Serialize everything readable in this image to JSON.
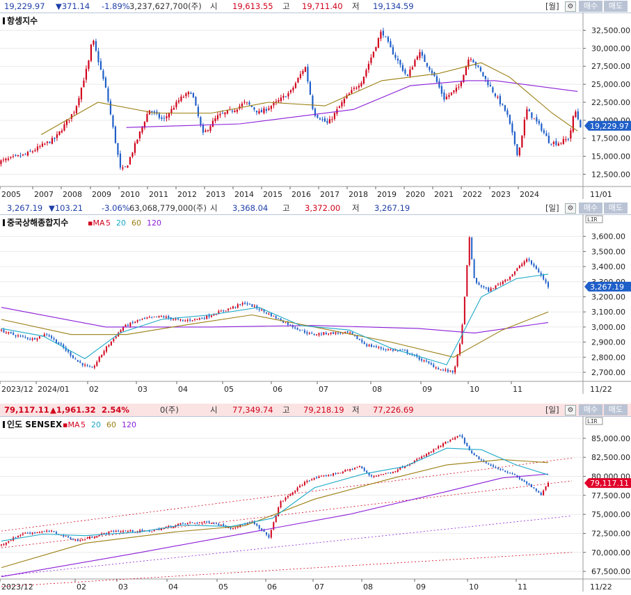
{
  "colors": {
    "up": "#d0021b",
    "down": "#1f5fc8",
    "ma5": "#e0002a",
    "ma20": "#1aa8c8",
    "ma60": "#9a7d10",
    "ma120": "#8a1cd8",
    "grid": "#eaeaea"
  },
  "icons": [
    "gear-icon",
    "buy-button",
    "sell-button"
  ],
  "panels": [
    {
      "header": {
        "last": "19,229.97",
        "change": "▼371.14",
        "pct": "-1.89%",
        "volume": "3,237,627,700(주)",
        "open_label": "시",
        "open": "19,613.55",
        "high_label": "고",
        "high": "19,711.40",
        "low_label": "저",
        "low": "19,134.59",
        "period": "월",
        "gear": "⚙",
        "buy": "매수",
        "sell": "매도"
      },
      "title": "항셍지수",
      "legend": [],
      "scale_box": "",
      "date_end": "11/01",
      "price_tag": "19,229.97"
    },
    {
      "header": {
        "last": "3,267.19",
        "change": "▼103.21",
        "pct": "-3.06%",
        "volume": "63,068,779,000(주)",
        "open_label": "시",
        "open": "3,368.04",
        "high_label": "고",
        "high": "3,372.00",
        "low_label": "저",
        "low": "3,267.19",
        "period": "일",
        "gear": "⚙",
        "buy": "매수",
        "sell": "매도"
      },
      "title": "중국상해종합지수",
      "legend": [
        "MA",
        "5",
        "20",
        "60",
        "120"
      ],
      "scale_box": "L|I|R",
      "date_end": "11/22",
      "price_tag": "3,267.19"
    },
    {
      "header": {
        "last": "79,117.11",
        "change": "▲1,961.32",
        "pct": "2.54%",
        "volume": "0(주)",
        "open_label": "시",
        "open": "77,349.74",
        "high_label": "고",
        "high": "79,218.19",
        "low_label": "저",
        "low": "77,226.69",
        "period": "일",
        "gear": "⚙",
        "buy": "매수",
        "sell": "매도"
      },
      "title": "인도 SENSEX",
      "legend": [
        "MA",
        "5",
        "20",
        "60",
        "120"
      ],
      "scale_box": "L|I|R",
      "date_end": "11/22",
      "price_tag": "79,117.11"
    }
  ],
  "chart_data": [
    {
      "type": "candlestick",
      "title": "항셍지수",
      "period": "monthly",
      "x_ticks": [
        "2005",
        "2007",
        "2008",
        "2009",
        "2010",
        "2011",
        "2012",
        "2013",
        "2014",
        "2015",
        "2016",
        "2017",
        "2018",
        "2019",
        "2020",
        "2021",
        "2022",
        "2023",
        "2024"
      ],
      "y_ticks": [
        "12,500.00",
        "15,000.00",
        "17,500.00",
        "20,000.00",
        "22,500.00",
        "25,000.00",
        "27,500.00",
        "30,000.00",
        "32,500.00"
      ],
      "ylim": [
        10800,
        34000
      ],
      "close_path": [
        [
          2004.5,
          14200
        ],
        [
          2005.5,
          15300
        ],
        [
          2006.5,
          17500
        ],
        [
          2007.2,
          21500
        ],
        [
          2007.7,
          28500
        ],
        [
          2007.8,
          31500
        ],
        [
          2008.3,
          24000
        ],
        [
          2008.8,
          13000
        ],
        [
          2009.0,
          13500
        ],
        [
          2009.8,
          21500
        ],
        [
          2010.3,
          20000
        ],
        [
          2010.9,
          23000
        ],
        [
          2011.3,
          24000
        ],
        [
          2011.7,
          18000
        ],
        [
          2012.2,
          20500
        ],
        [
          2012.8,
          21500
        ],
        [
          2013.2,
          22500
        ],
        [
          2013.7,
          21000
        ],
        [
          2014.3,
          22500
        ],
        [
          2014.8,
          24000
        ],
        [
          2015.3,
          27500
        ],
        [
          2015.6,
          21000
        ],
        [
          2016.1,
          19500
        ],
        [
          2016.7,
          23000
        ],
        [
          2017.3,
          25500
        ],
        [
          2018.0,
          32500
        ],
        [
          2018.3,
          30000
        ],
        [
          2018.9,
          26000
        ],
        [
          2019.3,
          29500
        ],
        [
          2019.8,
          26500
        ],
        [
          2020.2,
          23000
        ],
        [
          2020.7,
          24500
        ],
        [
          2021.1,
          29000
        ],
        [
          2021.6,
          26000
        ],
        [
          2022.0,
          23500
        ],
        [
          2022.4,
          21000
        ],
        [
          2022.8,
          15000
        ],
        [
          2023.1,
          21500
        ],
        [
          2023.6,
          19000
        ],
        [
          2023.9,
          17000
        ],
        [
          2024.2,
          16800
        ],
        [
          2024.6,
          17500
        ],
        [
          2024.8,
          21500
        ],
        [
          2025.0,
          19230
        ]
      ],
      "ma_long": [
        [
          2009.0,
          19000
        ],
        [
          2013.0,
          19500
        ],
        [
          2017.0,
          21500
        ],
        [
          2019.0,
          24800
        ],
        [
          2021.0,
          25500
        ],
        [
          2022.0,
          25500
        ],
        [
          2024.9,
          24000
        ]
      ],
      "ma_mid": [
        [
          2006.0,
          18000
        ],
        [
          2008.0,
          22500
        ],
        [
          2010.0,
          21000
        ],
        [
          2012.0,
          21000
        ],
        [
          2014.0,
          22500
        ],
        [
          2016.0,
          22000
        ],
        [
          2018.0,
          25500
        ],
        [
          2020.0,
          26500
        ],
        [
          2021.5,
          28000
        ],
        [
          2022.5,
          26000
        ],
        [
          2024.0,
          21000
        ],
        [
          2024.9,
          18500
        ]
      ]
    },
    {
      "type": "candlestick",
      "title": "중국상해종합지수",
      "period": "daily",
      "x_ticks": [
        "2023/12",
        "2024/01",
        "02",
        "03",
        "04",
        "05",
        "06",
        "07",
        "08",
        "09",
        "10",
        "11"
      ],
      "y_ticks": [
        "2,700.00",
        "2,800.00",
        "2,900.00",
        "3,000.00",
        "3,100.00",
        "3,200.00",
        "3,300.00",
        "3,400.00",
        "3,500.00",
        "3,600.00"
      ],
      "ylim": [
        2640,
        3700
      ],
      "close_path": [
        [
          0,
          2975
        ],
        [
          20,
          2945
        ],
        [
          45,
          2920
        ],
        [
          65,
          2955
        ],
        [
          85,
          2880
        ],
        [
          110,
          2770
        ],
        [
          130,
          2720
        ],
        [
          150,
          2860
        ],
        [
          175,
          3000
        ],
        [
          200,
          3050
        ],
        [
          230,
          3070
        ],
        [
          260,
          3040
        ],
        [
          290,
          3060
        ],
        [
          320,
          3110
        ],
        [
          350,
          3160
        ],
        [
          370,
          3120
        ],
        [
          395,
          3060
        ],
        [
          420,
          3000
        ],
        [
          445,
          2950
        ],
        [
          470,
          2960
        ],
        [
          500,
          2960
        ],
        [
          525,
          2880
        ],
        [
          555,
          2850
        ],
        [
          580,
          2840
        ],
        [
          605,
          2780
        ],
        [
          630,
          2720
        ],
        [
          650,
          2700
        ],
        [
          660,
          2900
        ],
        [
          668,
          3300
        ],
        [
          672,
          3620
        ],
        [
          680,
          3300
        ],
        [
          700,
          3240
        ],
        [
          730,
          3330
        ],
        [
          755,
          3450
        ],
        [
          770,
          3380
        ],
        [
          786,
          3267
        ]
      ],
      "ma20": [
        [
          0,
          2990
        ],
        [
          60,
          2940
        ],
        [
          120,
          2790
        ],
        [
          170,
          2960
        ],
        [
          230,
          3050
        ],
        [
          300,
          3080
        ],
        [
          370,
          3130
        ],
        [
          430,
          3010
        ],
        [
          500,
          2980
        ],
        [
          560,
          2860
        ],
        [
          640,
          2750
        ],
        [
          690,
          3200
        ],
        [
          740,
          3320
        ],
        [
          786,
          3350
        ]
      ],
      "ma60": [
        [
          0,
          3050
        ],
        [
          100,
          2950
        ],
        [
          180,
          2950
        ],
        [
          260,
          3010
        ],
        [
          360,
          3080
        ],
        [
          450,
          3000
        ],
        [
          560,
          2900
        ],
        [
          650,
          2800
        ],
        [
          720,
          2980
        ],
        [
          786,
          3100
        ]
      ],
      "ma120": [
        [
          0,
          3130
        ],
        [
          150,
          3000
        ],
        [
          300,
          3000
        ],
        [
          450,
          3010
        ],
        [
          600,
          2990
        ],
        [
          680,
          2960
        ],
        [
          786,
          3030
        ]
      ]
    },
    {
      "type": "candlestick",
      "title": "인도 SENSEX",
      "period": "daily",
      "x_ticks": [
        "2023/12",
        "02",
        "03",
        "04",
        "05",
        "06",
        "07",
        "08",
        "09",
        "10",
        "11"
      ],
      "y_ticks": [
        "67,500.00",
        "70,000.00",
        "72,500.00",
        "75,000.00",
        "77,500.00",
        "80,000.00",
        "82,500.00",
        "85,000.00"
      ],
      "ylim": [
        66500,
        87000
      ],
      "close_path": [
        [
          0,
          71000
        ],
        [
          30,
          72500
        ],
        [
          70,
          72800
        ],
        [
          110,
          71500
        ],
        [
          160,
          72800
        ],
        [
          215,
          72800
        ],
        [
          260,
          73800
        ],
        [
          300,
          74000
        ],
        [
          330,
          73200
        ],
        [
          360,
          74000
        ],
        [
          385,
          72000
        ],
        [
          400,
          76500
        ],
        [
          440,
          79500
        ],
        [
          490,
          80600
        ],
        [
          515,
          81300
        ],
        [
          530,
          80000
        ],
        [
          560,
          80500
        ],
        [
          600,
          82300
        ],
        [
          640,
          84500
        ],
        [
          660,
          85400
        ],
        [
          675,
          83000
        ],
        [
          700,
          81500
        ],
        [
          730,
          80500
        ],
        [
          760,
          78800
        ],
        [
          775,
          77500
        ],
        [
          786,
          79117
        ]
      ],
      "ma20": [
        [
          0,
          71500
        ],
        [
          60,
          72400
        ],
        [
          120,
          72200
        ],
        [
          200,
          72700
        ],
        [
          260,
          73600
        ],
        [
          330,
          73400
        ],
        [
          390,
          74500
        ],
        [
          450,
          78500
        ],
        [
          520,
          80300
        ],
        [
          580,
          81300
        ],
        [
          640,
          83700
        ],
        [
          690,
          83500
        ],
        [
          740,
          81500
        ],
        [
          786,
          80200
        ]
      ],
      "ma60": [
        [
          0,
          68000
        ],
        [
          120,
          71200
        ],
        [
          250,
          72700
        ],
        [
          350,
          73500
        ],
        [
          450,
          77000
        ],
        [
          560,
          79700
        ],
        [
          640,
          81500
        ],
        [
          720,
          82200
        ],
        [
          786,
          81800
        ]
      ],
      "ma120": [
        [
          0,
          66800
        ],
        [
          200,
          70000
        ],
        [
          350,
          72500
        ],
        [
          500,
          75000
        ],
        [
          640,
          78000
        ],
        [
          720,
          79800
        ],
        [
          786,
          80300
        ]
      ],
      "trend_lines": [
        [
          [
            0,
            72800
          ],
          [
            820,
            82400
          ]
        ],
        [
          [
            0,
            70600
          ],
          [
            820,
            79400
          ]
        ],
        [
          [
            0,
            66900
          ],
          [
            820,
            74800
          ]
        ],
        [
          [
            0,
            65500
          ],
          [
            820,
            70000
          ]
        ]
      ]
    }
  ]
}
